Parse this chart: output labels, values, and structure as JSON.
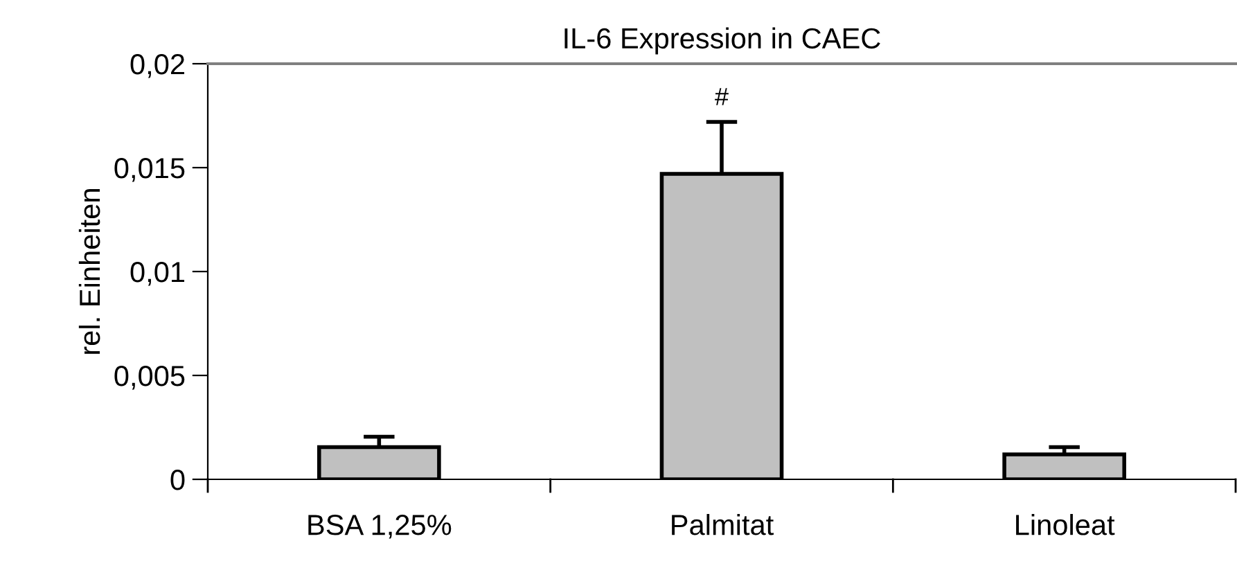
{
  "chart_data": {
    "type": "bar",
    "title": "IL-6 Expression in CAEC",
    "ylabel": "rel. Einheiten",
    "categories": [
      "BSA 1,25%",
      "Palmitat",
      "Linoleat"
    ],
    "values": [
      0.00155,
      0.0147,
      0.0012
    ],
    "errors": [
      0.0005,
      0.0025,
      0.00035
    ],
    "color": "#c0c0c0",
    "ylim": [
      0,
      0.02
    ],
    "yticks": [
      {
        "value": 0,
        "label": "0"
      },
      {
        "value": 0.005,
        "label": "0,005"
      },
      {
        "value": 0.01,
        "label": "0,01"
      },
      {
        "value": 0.015,
        "label": "0,015"
      },
      {
        "value": 0.02,
        "label": "0,02"
      }
    ],
    "annotations": [
      "#"
    ],
    "grid": false,
    "legend": false
  }
}
